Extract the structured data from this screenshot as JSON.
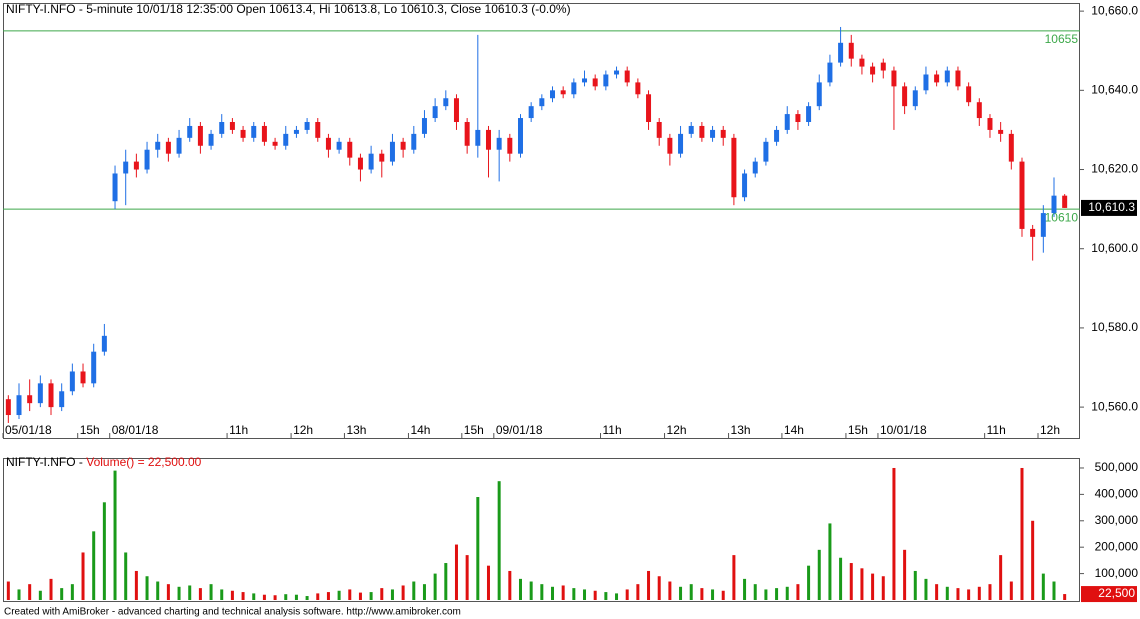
{
  "chart_data": [
    {
      "type": "candlestick",
      "title": "NIFTY-I.NFO - 5-minute 10/01/18 12:35:00 Open 10613.4, Hi 10613.8, Lo 10610.3, Close 10610.3 (-0.0%)",
      "categories": [
        "05/01/18",
        null,
        null,
        null,
        null,
        null,
        null,
        "15h",
        null,
        null,
        "08/01/18",
        null,
        null,
        null,
        null,
        null,
        null,
        null,
        null,
        null,
        null,
        "11h",
        null,
        null,
        null,
        null,
        null,
        "12h",
        null,
        null,
        null,
        null,
        "13h",
        null,
        null,
        null,
        null,
        null,
        "14h",
        null,
        null,
        null,
        null,
        "15h",
        null,
        null,
        "09/01/18",
        null,
        null,
        null,
        null,
        null,
        null,
        null,
        null,
        null,
        "11h",
        null,
        null,
        null,
        null,
        null,
        "12h",
        null,
        null,
        null,
        null,
        null,
        "13h",
        null,
        null,
        null,
        null,
        "14h",
        null,
        null,
        null,
        null,
        null,
        "15h",
        null,
        null,
        "10/01/18",
        null,
        null,
        null,
        null,
        null,
        null,
        null,
        null,
        null,
        "11h",
        null,
        null,
        null,
        null,
        "12h",
        null,
        null
      ],
      "open": [
        10562,
        10558,
        10563,
        10561,
        10566,
        10560,
        10564,
        10569,
        10566,
        10574,
        10612,
        10619,
        10622,
        10620,
        10625,
        10627,
        10624,
        10628,
        10631,
        10626,
        10629,
        10632,
        10630,
        10628,
        10631,
        10627,
        10626,
        10629,
        10630,
        10632,
        10628,
        10625,
        10627,
        10623,
        10620,
        10624,
        10622,
        10627,
        10625,
        10629,
        10633,
        10636,
        10638,
        10632,
        10626,
        10630,
        10625,
        10628,
        10624,
        10633,
        10636,
        10638,
        10640,
        10639,
        10642,
        10643,
        10641,
        10644,
        10645,
        10642,
        10639,
        10632,
        10628,
        10624,
        10629,
        10631,
        10628,
        10630,
        10628,
        10613,
        10619,
        10622,
        10627,
        10630,
        10634,
        10632,
        10636,
        10642,
        10647,
        10652,
        10648,
        10646,
        10647,
        10645,
        10641,
        10636,
        10640,
        10644,
        10642,
        10645,
        10641,
        10637,
        10633,
        10630,
        10629,
        10622,
        10605,
        10603,
        10609,
        10613.4
      ],
      "high": [
        10563,
        10566,
        10567,
        10568,
        10567,
        10566,
        10571,
        10571,
        10576,
        10581,
        10621,
        10625,
        10624,
        10627,
        10629,
        10628,
        10630,
        10633,
        10632,
        10630,
        10634,
        10633,
        10631,
        10632,
        10632,
        10628,
        10631,
        10631,
        10633,
        10633,
        10629,
        10628,
        10628,
        10624,
        10626,
        10625,
        10629,
        10628,
        10631,
        10635,
        10638,
        10640,
        10639,
        10633,
        10654,
        10631,
        10630,
        10629,
        10634,
        10637,
        10639,
        10641,
        10641,
        10643,
        10645,
        10644,
        10645,
        10646,
        10646,
        10643,
        10640,
        10633,
        10629,
        10631,
        10632,
        10632,
        10631,
        10631,
        10629,
        10620,
        10623,
        10628,
        10631,
        10636,
        10635,
        10637,
        10644,
        10649,
        10656,
        10654,
        10649,
        10647,
        10648,
        10646,
        10642,
        10641,
        10646,
        10645,
        10646,
        10646,
        10642,
        10638,
        10634,
        10632,
        10630,
        10623,
        10606,
        10611,
        10618,
        10613.8
      ],
      "low": [
        10556,
        10557,
        10559,
        10560,
        10558,
        10559,
        10563,
        10565,
        10565,
        10573,
        10610,
        10611,
        10618,
        10619,
        10623,
        10622,
        10623,
        10627,
        10624,
        10625,
        10628,
        10629,
        10627,
        10627,
        10626,
        10625,
        10625,
        10628,
        10629,
        10627,
        10623,
        10624,
        10621,
        10617,
        10619,
        10618,
        10621,
        10623,
        10624,
        10628,
        10632,
        10635,
        10630,
        10624,
        10623,
        10618,
        10617,
        10622,
        10623,
        10632,
        10635,
        10637,
        10638,
        10638,
        10641,
        10640,
        10640,
        10643,
        10641,
        10638,
        10630,
        10626,
        10621,
        10623,
        10628,
        10627,
        10627,
        10626,
        10611,
        10612,
        10618,
        10621,
        10626,
        10629,
        10630,
        10631,
        10635,
        10641,
        10646,
        10646,
        10644,
        10642,
        10643,
        10630,
        10634,
        10635,
        10639,
        10641,
        10641,
        10640,
        10636,
        10631,
        10628,
        10627,
        10620,
        10603,
        10597,
        10599,
        10608,
        10610.3
      ],
      "close": [
        10558,
        10563,
        10561,
        10566,
        10560,
        10564,
        10569,
        10566,
        10574,
        10578,
        10619,
        10622,
        10620,
        10625,
        10627,
        10624,
        10628,
        10631,
        10626,
        10629,
        10632,
        10630,
        10628,
        10631,
        10627,
        10626,
        10629,
        10630,
        10632,
        10628,
        10625,
        10627,
        10623,
        10620,
        10624,
        10622,
        10627,
        10625,
        10629,
        10633,
        10636,
        10638,
        10632,
        10626,
        10630,
        10625,
        10628,
        10624,
        10633,
        10636,
        10638,
        10640,
        10639,
        10642,
        10643,
        10641,
        10644,
        10645,
        10642,
        10639,
        10632,
        10628,
        10624,
        10629,
        10631,
        10628,
        10630,
        10628,
        10613,
        10619,
        10622,
        10627,
        10630,
        10634,
        10632,
        10636,
        10642,
        10647,
        10652,
        10648,
        10646,
        10644,
        10645,
        10641,
        10636,
        10640,
        10644,
        10642,
        10645,
        10641,
        10637,
        10633,
        10630,
        10629,
        10622,
        10605,
        10603,
        10609,
        10613.4,
        10610.3
      ],
      "up_color": "#1f6fe5",
      "down_color": "#e8141b",
      "ylim": [
        10552.2,
        10661.8
      ],
      "yticks": [
        {
          "value": 10560,
          "label": "10,560.0"
        },
        {
          "value": 10580,
          "label": "10,580.0"
        },
        {
          "value": 10600,
          "label": "10,600.0"
        },
        {
          "value": 10620,
          "label": "10,620.0"
        },
        {
          "value": 10640,
          "label": "10,640.0"
        },
        {
          "value": 10660,
          "label": "10,660.0"
        }
      ],
      "levels": [
        10655,
        10610
      ],
      "level_color": "#3da84a",
      "last": {
        "value": 10610.3,
        "label": "10,610.3"
      }
    },
    {
      "type": "volume_bar",
      "title": "NIFTY-I.NFO - ",
      "indicator": "Volume() = 22,500.00",
      "values": [
        70000,
        40000,
        60000,
        35000,
        80000,
        45000,
        60000,
        180000,
        260000,
        370000,
        490000,
        180000,
        110000,
        90000,
        70000,
        60000,
        50000,
        55000,
        45000,
        60000,
        40000,
        35000,
        30000,
        25000,
        20000,
        18000,
        22000,
        20000,
        15000,
        25000,
        30000,
        35000,
        40000,
        28000,
        30000,
        45000,
        40000,
        55000,
        70000,
        60000,
        100000,
        140000,
        210000,
        170000,
        390000,
        130000,
        450000,
        110000,
        80000,
        70000,
        60000,
        50000,
        55000,
        45000,
        40000,
        35000,
        30000,
        25000,
        40000,
        60000,
        110000,
        90000,
        70000,
        50000,
        60000,
        45000,
        40000,
        35000,
        170000,
        80000,
        60000,
        40000,
        45000,
        50000,
        60000,
        130000,
        190000,
        290000,
        160000,
        140000,
        120000,
        100000,
        90000,
        500000,
        190000,
        110000,
        80000,
        60000,
        50000,
        45000,
        40000,
        50000,
        60000,
        170000,
        70000,
        500000,
        300000,
        100000,
        70000,
        22500
      ],
      "up_color": "#1a9a1a",
      "down_color": "#e01010",
      "ylim": [
        0,
        534000
      ],
      "yticks": [
        {
          "value": 100000,
          "label": "100,000"
        },
        {
          "value": 200000,
          "label": "200,000"
        },
        {
          "value": 300000,
          "label": "300,000"
        },
        {
          "value": 400000,
          "label": "400,000"
        },
        {
          "value": 500000,
          "label": "500,000"
        }
      ],
      "last": {
        "value": 22500,
        "label": "22,500"
      }
    }
  ],
  "footer": "Created with AmiBroker - advanced charting and technical analysis software. http://www.amibroker.com"
}
